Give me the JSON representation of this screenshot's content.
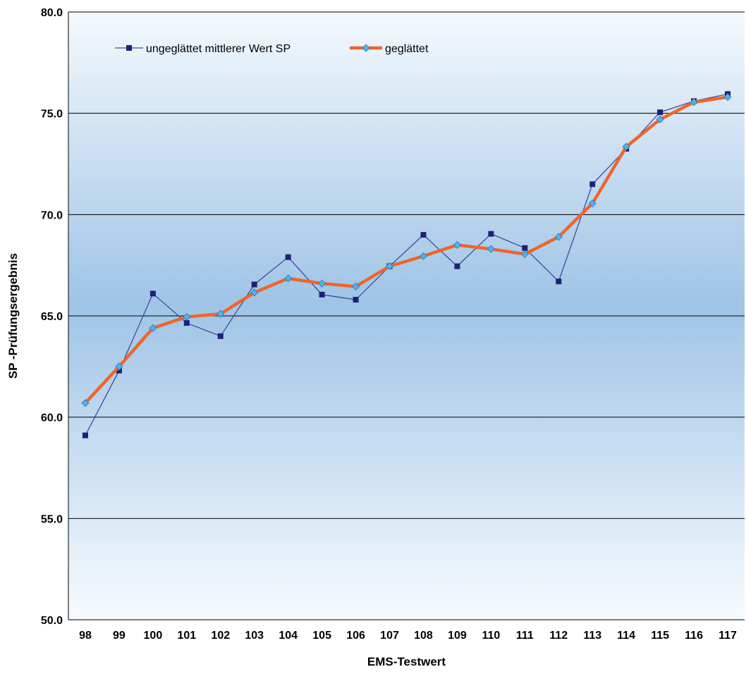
{
  "chart_data": {
    "type": "line",
    "xlabel": "EMS-Testwert",
    "ylabel": "SP -Prüfungsergebnis",
    "categories": [
      "98",
      "99",
      "100",
      "101",
      "102",
      "103",
      "104",
      "105",
      "106",
      "107",
      "108",
      "109",
      "110",
      "111",
      "112",
      "113",
      "114",
      "115",
      "116",
      "117"
    ],
    "ylim": [
      50,
      80
    ],
    "yticks": [
      "50.0",
      "55.0",
      "60.0",
      "65.0",
      "70.0",
      "75.0",
      "80.0"
    ],
    "grid": "horizontal",
    "legend_position": "top-left",
    "series": [
      {
        "name": "ungeglättet mittlerer Wert SP",
        "color": "#1f1f7a",
        "line_color": "#3a4d9e",
        "marker": "square",
        "values": [
          59.1,
          62.3,
          66.1,
          64.65,
          64.0,
          66.55,
          67.9,
          66.05,
          65.8,
          67.45,
          69.0,
          67.45,
          69.05,
          68.35,
          66.7,
          71.5,
          73.25,
          75.05,
          75.6,
          75.95
        ]
      },
      {
        "name": "geglättet",
        "color": "#f0642a",
        "marker_color": "#4fb3e8",
        "marker": "diamond",
        "values": [
          60.7,
          62.5,
          64.4,
          64.95,
          65.1,
          66.15,
          66.85,
          66.6,
          66.45,
          67.45,
          67.95,
          68.5,
          68.3,
          68.05,
          68.9,
          70.55,
          73.35,
          74.7,
          75.55,
          75.8
        ]
      }
    ]
  }
}
